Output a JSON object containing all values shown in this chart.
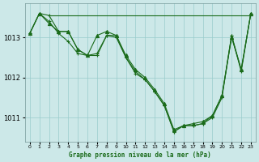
{
  "background_color": "#cce8e8",
  "grid_color": "#99cccc",
  "line_color": "#1a6b1a",
  "marker_color": "#1a6b1a",
  "title": "Graphe pression niveau de la mer (hPa)",
  "xlim": [
    -0.5,
    23.5
  ],
  "ylim": [
    1010.4,
    1013.85
  ],
  "yticks": [
    1011,
    1012,
    1013
  ],
  "xticks": [
    0,
    1,
    2,
    3,
    4,
    5,
    6,
    7,
    8,
    9,
    10,
    11,
    12,
    13,
    14,
    15,
    16,
    17,
    18,
    19,
    20,
    21,
    22,
    23
  ],
  "series": [
    {
      "x": [
        2,
        3,
        4,
        5,
        6,
        7,
        8,
        9,
        10,
        11,
        12,
        13,
        14,
        15,
        16,
        17,
        18,
        19,
        20,
        21,
        22,
        23
      ],
      "y": [
        1013.55,
        1013.55,
        1013.55,
        1013.55,
        1013.55,
        1013.55,
        1013.55,
        1013.55,
        1013.55,
        1013.55,
        1013.55,
        1013.55,
        1013.55,
        1013.55,
        1013.55,
        1013.55,
        1013.55,
        1013.55,
        1013.55,
        1013.55,
        1013.55,
        1013.55
      ],
      "marker": null
    },
    {
      "x": [
        0,
        1,
        2,
        3,
        4,
        5,
        6,
        7,
        8,
        9,
        10,
        11,
        12,
        13,
        14,
        15,
        16,
        17,
        18,
        19,
        20,
        21,
        22,
        23
      ],
      "y": [
        1013.1,
        1013.6,
        1013.55,
        1013.15,
        1013.15,
        1012.7,
        1012.55,
        1012.6,
        1013.05,
        1013.0,
        1012.5,
        1012.15,
        1011.95,
        1011.65,
        1011.3,
        1010.65,
        1010.8,
        1010.8,
        1010.85,
        1011.05,
        1011.55,
        1013.05,
        1012.2,
        1013.6
      ],
      "marker": "+"
    },
    {
      "x": [
        0,
        1,
        2,
        3,
        4,
        5,
        6,
        7,
        8,
        9,
        10,
        11,
        12,
        13,
        14,
        15,
        16,
        17,
        18,
        19,
        20,
        21,
        22,
        23
      ],
      "y": [
        1013.1,
        1013.6,
        1013.4,
        1013.1,
        1012.9,
        1012.6,
        1012.55,
        1012.55,
        1013.05,
        1013.05,
        1012.5,
        1012.1,
        1011.95,
        1011.65,
        1011.3,
        1010.65,
        1010.8,
        1010.8,
        1010.85,
        1011.0,
        1011.5,
        1013.05,
        1012.15,
        1013.6
      ],
      "marker": "+"
    },
    {
      "x": [
        0,
        1,
        2,
        3,
        4,
        5,
        6,
        7,
        8,
        9,
        10,
        11,
        12,
        13,
        14,
        15,
        16,
        17,
        18,
        19,
        20,
        21,
        22,
        23
      ],
      "y": [
        1013.1,
        1013.6,
        1013.35,
        1013.15,
        1013.15,
        1012.7,
        1012.55,
        1013.05,
        1013.15,
        1013.05,
        1012.55,
        1012.2,
        1012.0,
        1011.7,
        1011.35,
        1010.7,
        1010.8,
        1010.85,
        1010.9,
        1011.05,
        1011.55,
        1013.0,
        1012.2,
        1013.6
      ],
      "marker": "^"
    }
  ]
}
